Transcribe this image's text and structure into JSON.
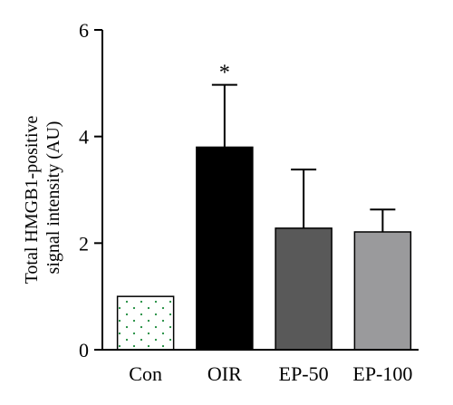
{
  "chart_data": {
    "type": "bar",
    "categories": [
      "Con",
      "OIR",
      "EP-50",
      "EP-100"
    ],
    "values": [
      1.0,
      3.8,
      2.28,
      2.21
    ],
    "errors": [
      0.0,
      1.17,
      1.1,
      0.42
    ],
    "ylabel_lines": [
      "Total HMGB1-positive",
      "signal intensity (AU)"
    ],
    "ylim": [
      0,
      6
    ],
    "yticks": [
      0,
      2,
      4,
      6
    ],
    "bar_colors": [
      "#ffffff",
      "#000000",
      "#595959",
      "#9a9a9c"
    ],
    "bar_patterns": [
      "dots",
      "solid",
      "solid",
      "solid"
    ],
    "dot_color": "#1a8a3a",
    "annotations": [
      {
        "category": "OIR",
        "text": "*"
      }
    ],
    "grid": false
  }
}
